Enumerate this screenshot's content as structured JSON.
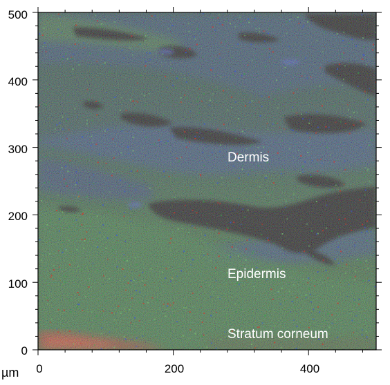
{
  "figure": {
    "x_axis": {
      "unit": "µm",
      "ticks": [
        "0",
        "200",
        "400"
      ]
    },
    "y_axis": {
      "ticks": [
        "0",
        "100",
        "200",
        "300",
        "400",
        "500"
      ]
    },
    "region_labels": {
      "dermis": "Dermis",
      "epidermis": "Epidermis",
      "stratum_corneum": "Stratum corneum"
    },
    "colors": {
      "green_channel": "#2f7a3a",
      "blue_channel": "#2a3f86",
      "red_channel": "#d8342a",
      "void": "#050505",
      "label_text": "#ffffff"
    }
  }
}
